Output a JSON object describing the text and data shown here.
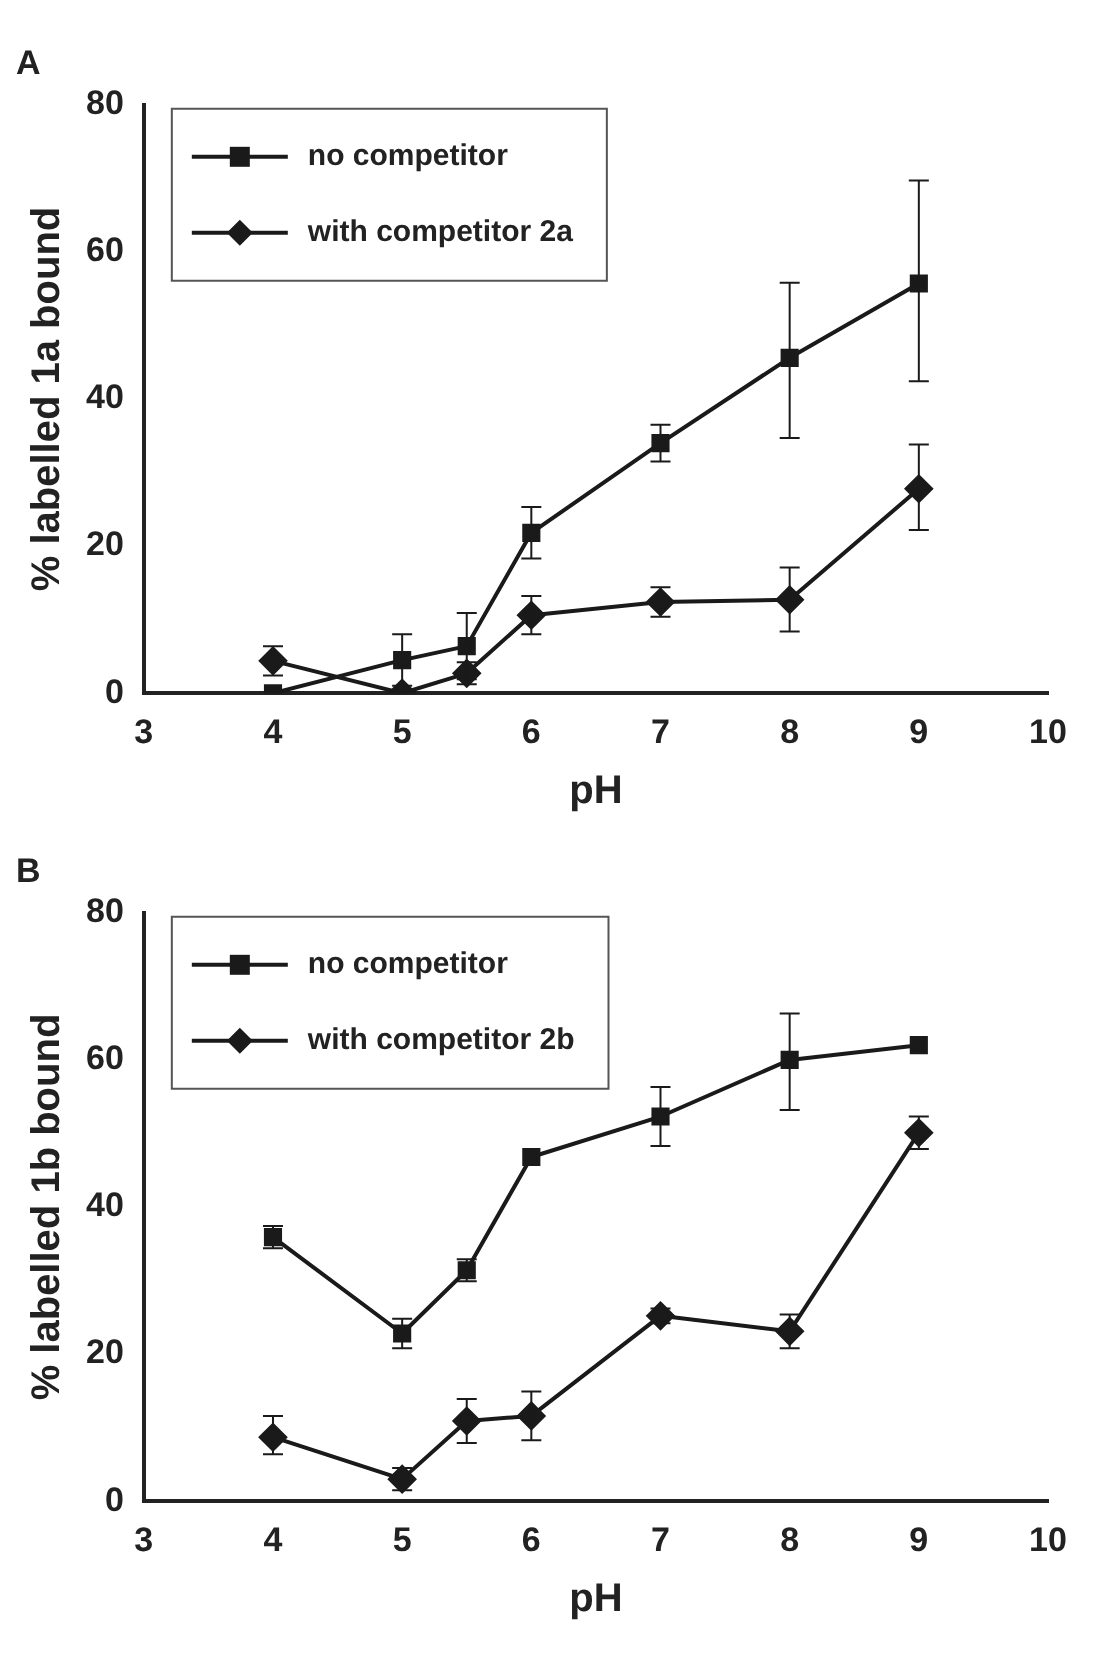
{
  "chart_data": [
    {
      "type": "line",
      "title": "A",
      "xlabel": "pH",
      "ylabel": "% labelled 1a bound",
      "x": [
        4,
        5,
        5.5,
        6,
        7,
        8,
        9
      ],
      "xlim": [
        3,
        10
      ],
      "xticks": [
        3,
        4,
        5,
        6,
        7,
        8,
        9,
        10
      ],
      "ylim": [
        0,
        80
      ],
      "yticks": [
        0,
        20,
        40,
        60,
        80
      ],
      "legend": "top left",
      "grid": false,
      "line_style": "solid",
      "series": [
        {
          "name": "no competitor",
          "color": "#1a1a1a",
          "marker": "square",
          "values": [
            0,
            4.5,
            6.4,
            21.8,
            34,
            45.6,
            55.7
          ],
          "errors": [
            null,
            3.5,
            4.5,
            3.5,
            2.5,
            [
              34.7,
              55.8
            ],
            [
              42.4,
              69.7
            ]
          ]
        },
        {
          "name": "with competitor 2a",
          "color": "#1a1a1a",
          "marker": "diamond",
          "values": [
            4.4,
            0,
            2.7,
            10.6,
            12.4,
            12.7,
            27.8
          ],
          "errors": [
            2,
            null,
            1.5,
            2.6,
            2,
            [
              8.4,
              17.1
            ],
            [
              22.2,
              33.8
            ]
          ]
        }
      ]
    },
    {
      "type": "line",
      "title": "B",
      "xlabel": "pH",
      "ylabel": "% labelled 1b bound",
      "x": [
        4,
        5,
        5.5,
        6,
        7,
        8,
        9
      ],
      "xlim": [
        3,
        10
      ],
      "xticks": [
        3,
        4,
        5,
        6,
        7,
        8,
        9,
        10
      ],
      "ylim": [
        0,
        80
      ],
      "yticks": [
        0,
        20,
        40,
        60,
        80
      ],
      "legend": "top left",
      "grid": false,
      "line_style": "solid",
      "series": [
        {
          "name": "no competitor",
          "color": "#1a1a1a",
          "marker": "square",
          "values": [
            35.9,
            22.8,
            31.4,
            46.8,
            52.3,
            60,
            62
          ],
          "errors": [
            1.5,
            2,
            1.5,
            null,
            4,
            [
              53.2,
              66.3
            ],
            null
          ]
        },
        {
          "name": "with competitor 2b",
          "color": "#1a1a1a",
          "marker": "diamond",
          "values": [
            8.7,
            3,
            10.9,
            11.6,
            25.2,
            23.1,
            50.1
          ],
          "errors": [
            [
              6.4,
              11.6
            ],
            1.5,
            3,
            3.3,
            1,
            2.3,
            2.2
          ]
        }
      ]
    }
  ]
}
